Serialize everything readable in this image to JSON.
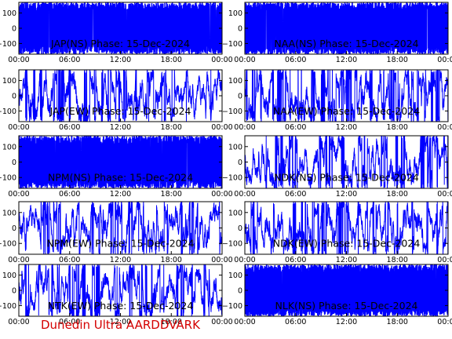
{
  "footer": "Dunedin Ultra AARDDVARK",
  "colors": {
    "trace": "#0000ff",
    "axes": "#000000",
    "footer": "#d40000"
  },
  "chart_data": [
    {
      "type": "line",
      "title": "JAP(NS) Phase: 15-Dec-2024",
      "x_ticks": [
        "00:00",
        "06:00",
        "12:00",
        "18:00",
        "00:00"
      ],
      "y_ticks": [
        "100",
        "0",
        "−100"
      ],
      "ylim": [
        -170,
        170
      ],
      "trace_style": "saturated",
      "grid": false,
      "legend": "none"
    },
    {
      "type": "line",
      "title": "NAA(NS) Phase: 15-Dec-2024",
      "x_ticks": [
        "00:00",
        "06:00",
        "12:00",
        "18:00",
        "00:00"
      ],
      "y_ticks": [
        "100",
        "0",
        "−100"
      ],
      "ylim": [
        -170,
        170
      ],
      "trace_style": "saturated",
      "grid": false,
      "legend": "none"
    },
    {
      "type": "line",
      "title": "JAP(EW) Phase: 15-Dec-2024",
      "x_ticks": [
        "00:00",
        "06:00",
        "12:00",
        "18:00",
        "00:00"
      ],
      "y_ticks": [
        "100",
        "0",
        "−100"
      ],
      "ylim": [
        -170,
        170
      ],
      "trace_style": "wrapping",
      "grid": false,
      "legend": "none"
    },
    {
      "type": "line",
      "title": "NAA(EW) Phase: 15-Dec-2024",
      "x_ticks": [
        "00:00",
        "06:00",
        "12:00",
        "18:00",
        "00:00"
      ],
      "y_ticks": [
        "100",
        "0",
        "−100"
      ],
      "ylim": [
        -170,
        170
      ],
      "trace_style": "wrapping",
      "grid": false,
      "legend": "none"
    },
    {
      "type": "line",
      "title": "NPM(NS) Phase: 15-Dec-2024",
      "x_ticks": [
        "00:00",
        "06:00",
        "12:00",
        "18:00",
        "00:00"
      ],
      "y_ticks": [
        "100",
        "0",
        "−100"
      ],
      "ylim": [
        -170,
        170
      ],
      "trace_style": "saturated",
      "grid": false,
      "legend": "none"
    },
    {
      "type": "line",
      "title": "NDK(NS) Phase: 15-Dec-2024",
      "x_ticks": [
        "00:00",
        "06:00",
        "12:00",
        "18:00",
        "00:00"
      ],
      "y_ticks": [
        "100",
        "0",
        "−100"
      ],
      "ylim": [
        -170,
        170
      ],
      "trace_style": "wrapping",
      "grid": false,
      "legend": "none"
    },
    {
      "type": "line",
      "title": "NPM(EW) Phase: 15-Dec-2024",
      "x_ticks": [
        "00:00",
        "06:00",
        "12:00",
        "18:00",
        "00:00"
      ],
      "y_ticks": [
        "100",
        "0",
        "−100"
      ],
      "ylim": [
        -170,
        170
      ],
      "trace_style": "wrapping",
      "grid": false,
      "legend": "none"
    },
    {
      "type": "line",
      "title": "NDK(EW) Phase: 15-Dec-2024",
      "x_ticks": [
        "00:00",
        "06:00",
        "12:00",
        "18:00",
        "00:00"
      ],
      "y_ticks": [
        "100",
        "0",
        "−100"
      ],
      "ylim": [
        -170,
        170
      ],
      "trace_style": "wrapping",
      "grid": false,
      "legend": "none"
    },
    {
      "type": "line",
      "title": "NTK(EW) Phase: 15-Dec-2024",
      "x_ticks": [
        "00:00",
        "06:00",
        "12:00",
        "18:00",
        "00:00"
      ],
      "y_ticks": [
        "100",
        "0",
        "−100"
      ],
      "ylim": [
        -170,
        170
      ],
      "trace_style": "wrapping",
      "grid": false,
      "legend": "none"
    },
    {
      "type": "line",
      "title": "NLK(NS) Phase: 15-Dec-2024",
      "x_ticks": [
        "00:00",
        "06:00",
        "12:00",
        "18:00",
        "00:00"
      ],
      "y_ticks": [
        "100",
        "0",
        "−100"
      ],
      "ylim": [
        -170,
        170
      ],
      "trace_style": "saturated",
      "grid": false,
      "legend": "none"
    }
  ]
}
